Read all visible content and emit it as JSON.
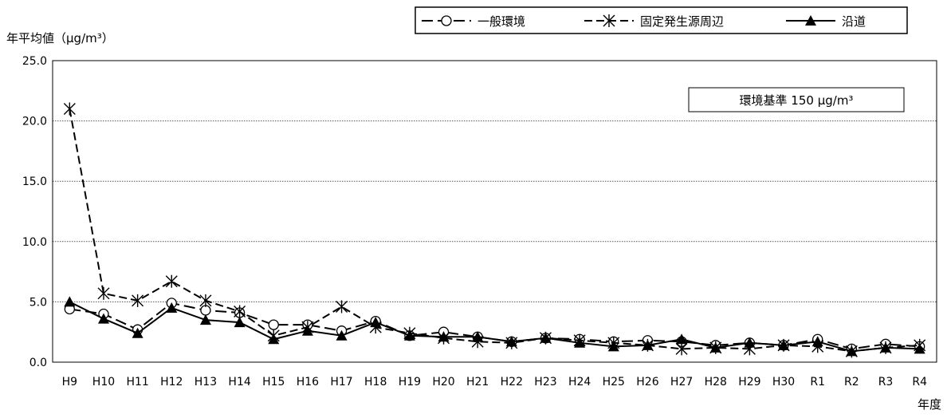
{
  "chart_data": {
    "type": "line",
    "ylabel": "年平均値（μg/m³）",
    "xlabel": "年度",
    "annotation": "環境基準 150 μg/m³",
    "ylim": [
      0,
      25
    ],
    "ytick_labels": [
      "0.0",
      "5.0",
      "10.0",
      "15.0",
      "20.0",
      "25.0"
    ],
    "yticks": [
      0,
      5,
      10,
      15,
      20,
      25
    ],
    "grid": true,
    "legend_position": "top-right",
    "categories": [
      "H9",
      "H10",
      "H11",
      "H12",
      "H13",
      "H14",
      "H15",
      "H16",
      "H17",
      "H18",
      "H19",
      "H20",
      "H21",
      "H22",
      "H23",
      "H24",
      "H25",
      "H26",
      "H27",
      "H28",
      "H29",
      "H30",
      "R1",
      "R2",
      "R3",
      "R4"
    ],
    "series": [
      {
        "name": "一般環境",
        "marker": "open-circle",
        "line": "long-dash",
        "values": [
          4.4,
          4.0,
          2.7,
          4.9,
          4.3,
          4.1,
          3.1,
          3.1,
          2.6,
          3.4,
          2.2,
          2.5,
          2.1,
          1.7,
          2.0,
          1.9,
          1.7,
          1.8,
          1.7,
          1.4,
          1.6,
          1.4,
          1.9,
          1.1,
          1.5,
          1.3
        ]
      },
      {
        "name": "固定発生源周辺",
        "marker": "asterisk",
        "line": "dash",
        "values": [
          21.0,
          5.7,
          5.1,
          6.7,
          5.1,
          4.2,
          2.2,
          2.9,
          4.6,
          2.9,
          2.4,
          2.0,
          1.7,
          1.6,
          2.0,
          1.8,
          1.6,
          1.4,
          1.1,
          1.2,
          1.1,
          1.4,
          1.3,
          0.9,
          1.2,
          1.4
        ]
      },
      {
        "name": "沿道",
        "marker": "filled-triangle",
        "line": "solid",
        "values": [
          5.0,
          3.6,
          2.4,
          4.5,
          3.5,
          3.3,
          1.9,
          2.6,
          2.2,
          3.3,
          2.2,
          2.1,
          2.1,
          1.7,
          2.0,
          1.6,
          1.3,
          1.4,
          1.9,
          1.2,
          1.6,
          1.4,
          1.7,
          0.9,
          1.2,
          1.1
        ]
      }
    ]
  }
}
